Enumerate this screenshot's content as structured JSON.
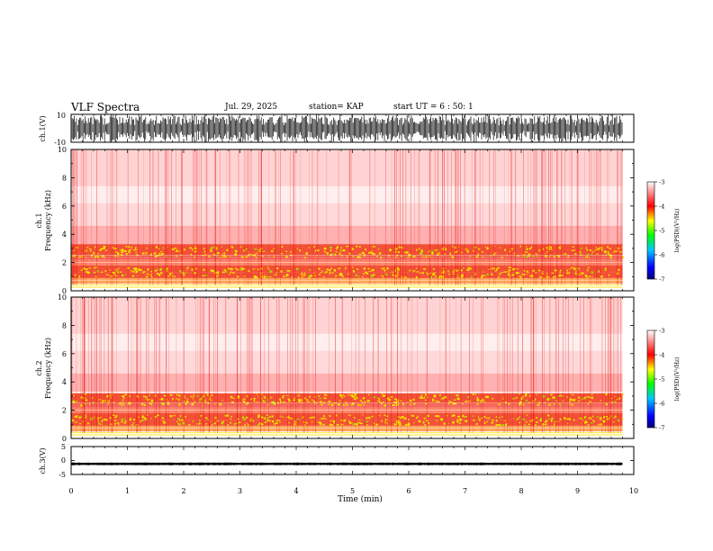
{
  "header": {
    "title": "VLF Spectra",
    "date": "Jul. 29, 2025",
    "station": "station= KAP",
    "start": "start UT =  6 : 50: 1"
  },
  "chart_data": [
    {
      "type": "line",
      "name": "ch1-waveform",
      "ylabel": "ch.1(V)",
      "ylim": [
        -10,
        10
      ],
      "y_ticks": [
        "10",
        "-10"
      ],
      "xlim": [
        0,
        10
      ]
    },
    {
      "type": "heatmap",
      "name": "ch1-spectrogram",
      "ylabel": "ch.1\nFrequency (kHz)",
      "ylim": [
        0,
        10
      ],
      "y_ticks": [
        "0",
        "2",
        "4",
        "6",
        "8",
        "10"
      ],
      "xlim": [
        0,
        10
      ],
      "data_extent_min": 9.8,
      "colorbar": {
        "label": "log(PSD)(V²/Hz)",
        "range": [
          -7,
          -3
        ],
        "ticks": [
          "-3",
          "-4",
          "-5",
          "-6",
          "-7"
        ]
      },
      "bands_khz": [
        [
          0.5,
          0.9,
          "low"
        ],
        [
          0.9,
          1.3,
          "high"
        ],
        [
          1.3,
          1.8,
          "high"
        ],
        [
          1.8,
          2.2,
          "mid"
        ],
        [
          2.4,
          3.3,
          "high"
        ]
      ]
    },
    {
      "type": "heatmap",
      "name": "ch2-spectrogram",
      "ylabel": "ch.2\nFrequency (kHz)",
      "ylim": [
        0,
        10
      ],
      "y_ticks": [
        "0",
        "2",
        "4",
        "6",
        "8",
        "10"
      ],
      "xlim": [
        0,
        10
      ],
      "data_extent_min": 9.8,
      "colorbar": {
        "label": "log(PSD)(V²/Hz)",
        "range": [
          -7,
          -3
        ],
        "ticks": [
          "-3",
          "-4",
          "-5",
          "-6",
          "-7"
        ]
      },
      "bands_khz": [
        [
          0.5,
          0.9,
          "low"
        ],
        [
          0.9,
          1.3,
          "high"
        ],
        [
          1.3,
          1.8,
          "high"
        ],
        [
          1.8,
          2.2,
          "mid"
        ],
        [
          2.4,
          3.2,
          "high"
        ]
      ]
    },
    {
      "type": "line",
      "name": "ch3-waveform",
      "ylabel": "ch.3(V)",
      "ylim": [
        -5,
        5
      ],
      "y_ticks": [
        "5",
        "0",
        "-5"
      ],
      "xlim": [
        0,
        10
      ],
      "trace_level_v": -1.2,
      "trace_amplitude_v": 0.5
    }
  ],
  "x_axis": {
    "label": "Time (min)",
    "ticks": [
      "0",
      "1",
      "2",
      "3",
      "4",
      "5",
      "6",
      "7",
      "8",
      "9",
      "10"
    ]
  }
}
